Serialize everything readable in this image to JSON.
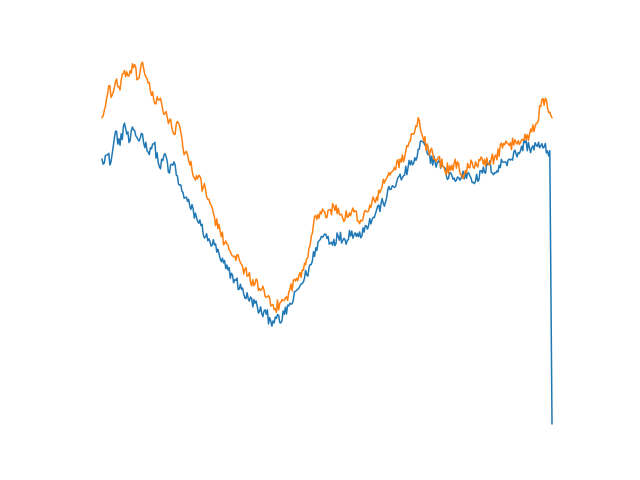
{
  "chart_data": {
    "type": "line",
    "title": "",
    "xlabel": "",
    "ylabel": "",
    "axes_visible": false,
    "grid": false,
    "legend": "none",
    "xlim": [
      0,
      400
    ],
    "ylim": [
      -1.05,
      1.65
    ],
    "series": [
      {
        "color": "#1f77b4",
        "keypoints": [
          [
            0,
            0.92
          ],
          [
            4,
            0.95
          ],
          [
            8,
            0.9
          ],
          [
            12,
            1.12
          ],
          [
            16,
            1.02
          ],
          [
            20,
            1.18
          ],
          [
            24,
            1.04
          ],
          [
            28,
            1.13
          ],
          [
            32,
            1.06
          ],
          [
            36,
            1.1
          ],
          [
            40,
            0.98
          ],
          [
            46,
            1.03
          ],
          [
            52,
            0.85
          ],
          [
            56,
            0.96
          ],
          [
            60,
            0.82
          ],
          [
            64,
            0.9
          ],
          [
            68,
            0.74
          ],
          [
            72,
            0.68
          ],
          [
            78,
            0.58
          ],
          [
            84,
            0.5
          ],
          [
            88,
            0.44
          ],
          [
            94,
            0.33
          ],
          [
            100,
            0.3
          ],
          [
            106,
            0.18
          ],
          [
            112,
            0.12
          ],
          [
            118,
            0.05
          ],
          [
            124,
            -0.02
          ],
          [
            130,
            -0.09
          ],
          [
            136,
            -0.12
          ],
          [
            140,
            -0.18
          ],
          [
            146,
            -0.2
          ],
          [
            150,
            -0.25
          ],
          [
            154,
            -0.22
          ],
          [
            158,
            -0.26
          ],
          [
            162,
            -0.2
          ],
          [
            166,
            -0.14
          ],
          [
            170,
            -0.1
          ],
          [
            174,
            -0.02
          ],
          [
            180,
            0.06
          ],
          [
            186,
            0.16
          ],
          [
            190,
            0.28
          ],
          [
            194,
            0.34
          ],
          [
            198,
            0.38
          ],
          [
            204,
            0.32
          ],
          [
            210,
            0.36
          ],
          [
            216,
            0.34
          ],
          [
            222,
            0.4
          ],
          [
            228,
            0.36
          ],
          [
            234,
            0.44
          ],
          [
            240,
            0.48
          ],
          [
            244,
            0.55
          ],
          [
            250,
            0.6
          ],
          [
            256,
            0.7
          ],
          [
            262,
            0.76
          ],
          [
            268,
            0.8
          ],
          [
            274,
            0.88
          ],
          [
            280,
            0.93
          ],
          [
            284,
            1.05
          ],
          [
            290,
            0.95
          ],
          [
            296,
            0.9
          ],
          [
            302,
            0.88
          ],
          [
            306,
            0.8
          ],
          [
            310,
            0.82
          ],
          [
            314,
            0.76
          ],
          [
            320,
            0.8
          ],
          [
            326,
            0.82
          ],
          [
            332,
            0.76
          ],
          [
            338,
            0.82
          ],
          [
            344,
            0.88
          ],
          [
            350,
            0.82
          ],
          [
            356,
            0.9
          ],
          [
            362,
            0.92
          ],
          [
            368,
            0.96
          ],
          [
            372,
            0.98
          ],
          [
            376,
            1.04
          ],
          [
            380,
            1.0
          ],
          [
            386,
            1.02
          ],
          [
            392,
            1.0
          ],
          [
            398,
            0.98
          ],
          [
            400,
            -0.99
          ]
        ]
      },
      {
        "color": "#ff7f0e",
        "keypoints": [
          [
            0,
            1.22
          ],
          [
            3,
            1.3
          ],
          [
            6,
            1.45
          ],
          [
            9,
            1.38
          ],
          [
            12,
            1.48
          ],
          [
            16,
            1.42
          ],
          [
            20,
            1.56
          ],
          [
            24,
            1.52
          ],
          [
            28,
            1.58
          ],
          [
            32,
            1.5
          ],
          [
            36,
            1.62
          ],
          [
            40,
            1.5
          ],
          [
            44,
            1.38
          ],
          [
            48,
            1.32
          ],
          [
            52,
            1.36
          ],
          [
            56,
            1.25
          ],
          [
            60,
            1.2
          ],
          [
            64,
            1.1
          ],
          [
            68,
            1.18
          ],
          [
            72,
            1.0
          ],
          [
            76,
            0.95
          ],
          [
            80,
            0.84
          ],
          [
            84,
            0.8
          ],
          [
            90,
            0.72
          ],
          [
            96,
            0.6
          ],
          [
            100,
            0.5
          ],
          [
            106,
            0.36
          ],
          [
            112,
            0.3
          ],
          [
            118,
            0.22
          ],
          [
            124,
            0.16
          ],
          [
            130,
            0.08
          ],
          [
            136,
            0.02
          ],
          [
            142,
            -0.02
          ],
          [
            146,
            -0.08
          ],
          [
            150,
            -0.14
          ],
          [
            154,
            -0.16
          ],
          [
            158,
            -0.12
          ],
          [
            162,
            -0.1
          ],
          [
            166,
            -0.04
          ],
          [
            172,
            0.04
          ],
          [
            178,
            0.12
          ],
          [
            184,
            0.28
          ],
          [
            188,
            0.45
          ],
          [
            192,
            0.52
          ],
          [
            196,
            0.56
          ],
          [
            200,
            0.5
          ],
          [
            206,
            0.58
          ],
          [
            212,
            0.52
          ],
          [
            218,
            0.5
          ],
          [
            224,
            0.54
          ],
          [
            230,
            0.48
          ],
          [
            236,
            0.54
          ],
          [
            242,
            0.62
          ],
          [
            248,
            0.7
          ],
          [
            254,
            0.8
          ],
          [
            260,
            0.86
          ],
          [
            266,
            0.9
          ],
          [
            270,
            0.98
          ],
          [
            274,
            1.05
          ],
          [
            278,
            1.12
          ],
          [
            282,
            1.2
          ],
          [
            286,
            1.05
          ],
          [
            292,
            0.98
          ],
          [
            298,
            0.92
          ],
          [
            304,
            0.86
          ],
          [
            310,
            0.84
          ],
          [
            316,
            0.9
          ],
          [
            320,
            0.8
          ],
          [
            326,
            0.86
          ],
          [
            332,
            0.9
          ],
          [
            338,
            0.92
          ],
          [
            344,
            0.88
          ],
          [
            350,
            0.95
          ],
          [
            356,
            1.0
          ],
          [
            362,
            1.02
          ],
          [
            368,
            1.04
          ],
          [
            374,
            1.06
          ],
          [
            380,
            1.1
          ],
          [
            386,
            1.18
          ],
          [
            390,
            1.3
          ],
          [
            394,
            1.36
          ],
          [
            398,
            1.26
          ],
          [
            400,
            1.22
          ]
        ]
      }
    ]
  }
}
